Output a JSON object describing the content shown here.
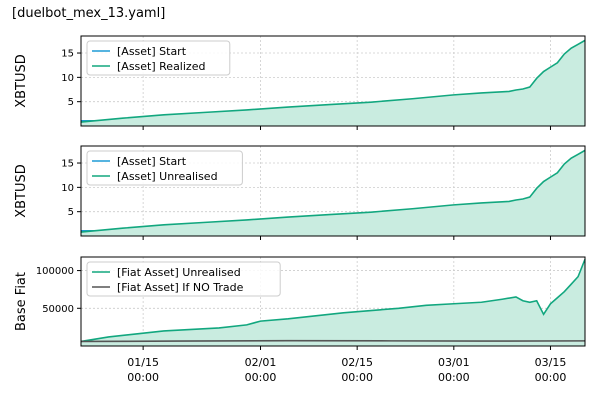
{
  "figure": {
    "title": "[duelbot_mex_13.yaml]"
  },
  "colors": {
    "asset_start": "#1f9bd6",
    "asset_main": "#12a77f",
    "asset_fill": "#c9ece0",
    "baseline": "#555555",
    "grid": "#cccccc"
  },
  "chart_data": [
    {
      "type": "area",
      "ylabel": "XBTUSD",
      "xlim": [
        "2019-01-06",
        "2019-03-20"
      ],
      "ylim": [
        0,
        18.5
      ],
      "yticks": [
        5,
        10,
        15
      ],
      "ytick_labels": [
        "5",
        "10",
        "15"
      ],
      "grid": true,
      "legend_position": "top-left",
      "series": [
        {
          "name": "[Asset] Start",
          "color": "#1f9bd6",
          "x": [
            "2019-01-06",
            "2019-03-20"
          ],
          "y": [
            1.0,
            1.0
          ]
        },
        {
          "name": "[Asset] Realized",
          "color": "#12a77f",
          "filled": true,
          "x": [
            "2019-01-06",
            "2019-01-12",
            "2019-01-18",
            "2019-01-24",
            "2019-01-30",
            "2019-02-05",
            "2019-02-11",
            "2019-02-17",
            "2019-02-23",
            "2019-03-01",
            "2019-03-05",
            "2019-03-09",
            "2019-03-10",
            "2019-03-11",
            "2019-03-12",
            "2019-03-13",
            "2019-03-14",
            "2019-03-15",
            "2019-03-16",
            "2019-03-17",
            "2019-03-18",
            "2019-03-19",
            "2019-03-20"
          ],
          "y": [
            0.8,
            1.6,
            2.3,
            2.8,
            3.3,
            3.9,
            4.4,
            4.9,
            5.6,
            6.4,
            6.8,
            7.1,
            7.4,
            7.6,
            8.0,
            9.8,
            11.2,
            12.1,
            13.0,
            14.8,
            16.0,
            16.8,
            17.6
          ]
        }
      ]
    },
    {
      "type": "area",
      "ylabel": "XBTUSD",
      "xlim": [
        "2019-01-06",
        "2019-03-20"
      ],
      "ylim": [
        0,
        18.5
      ],
      "yticks": [
        5,
        10,
        15
      ],
      "ytick_labels": [
        "5",
        "10",
        "15"
      ],
      "grid": true,
      "legend_position": "top-left",
      "series": [
        {
          "name": "[Asset] Start",
          "color": "#1f9bd6",
          "x": [
            "2019-01-06",
            "2019-03-20"
          ],
          "y": [
            1.0,
            1.0
          ]
        },
        {
          "name": "[Asset] Unrealised",
          "color": "#12a77f",
          "filled": true,
          "x": [
            "2019-01-06",
            "2019-01-12",
            "2019-01-18",
            "2019-01-24",
            "2019-01-30",
            "2019-02-05",
            "2019-02-11",
            "2019-02-17",
            "2019-02-23",
            "2019-03-01",
            "2019-03-05",
            "2019-03-09",
            "2019-03-10",
            "2019-03-11",
            "2019-03-12",
            "2019-03-13",
            "2019-03-14",
            "2019-03-15",
            "2019-03-16",
            "2019-03-17",
            "2019-03-18",
            "2019-03-19",
            "2019-03-20"
          ],
          "y": [
            0.8,
            1.6,
            2.3,
            2.8,
            3.3,
            3.9,
            4.4,
            4.9,
            5.6,
            6.4,
            6.8,
            7.1,
            7.4,
            7.6,
            8.0,
            9.8,
            11.2,
            12.1,
            13.0,
            14.8,
            16.0,
            16.8,
            17.6
          ]
        }
      ]
    },
    {
      "type": "area",
      "ylabel": "Base Fiat",
      "xlim": [
        "2019-01-06",
        "2019-03-20"
      ],
      "ylim": [
        0,
        118000
      ],
      "yticks": [
        50000,
        100000
      ],
      "ytick_labels": [
        "50000",
        "100000"
      ],
      "xticks": [
        "2019-01-15",
        "2019-02-01",
        "2019-02-15",
        "2019-03-01",
        "2019-03-15"
      ],
      "xtick_labels": [
        [
          "01/15",
          "00:00"
        ],
        [
          "02/01",
          "00:00"
        ],
        [
          "02/15",
          "00:00"
        ],
        [
          "03/01",
          "00:00"
        ],
        [
          "03/15",
          "00:00"
        ]
      ],
      "grid": true,
      "legend_position": "top-left",
      "series": [
        {
          "name": "[Fiat Asset] Unrealised",
          "color": "#12a77f",
          "filled": true,
          "x": [
            "2019-01-06",
            "2019-01-10",
            "2019-01-14",
            "2019-01-18",
            "2019-01-22",
            "2019-01-26",
            "2019-01-30",
            "2019-02-01",
            "2019-02-05",
            "2019-02-09",
            "2019-02-13",
            "2019-02-17",
            "2019-02-21",
            "2019-02-25",
            "2019-03-01",
            "2019-03-05",
            "2019-03-08",
            "2019-03-10",
            "2019-03-11",
            "2019-03-12",
            "2019-03-13",
            "2019-03-14",
            "2019-03-15",
            "2019-03-16",
            "2019-03-17",
            "2019-03-18",
            "2019-03-19",
            "2019-03-20"
          ],
          "y": [
            6000,
            12000,
            16000,
            20000,
            22000,
            24000,
            28000,
            33000,
            36000,
            40000,
            44000,
            47000,
            50000,
            54000,
            56000,
            58000,
            62000,
            65000,
            60000,
            58000,
            60000,
            42000,
            56000,
            64000,
            72000,
            82000,
            92000,
            115000
          ]
        },
        {
          "name": "[Fiat Asset] If NO Trade",
          "color": "#555555",
          "x": [
            "2019-01-06",
            "2019-01-20",
            "2019-02-05",
            "2019-02-20",
            "2019-03-05",
            "2019-03-20"
          ],
          "y": [
            6000,
            6500,
            7000,
            6800,
            6500,
            6800
          ]
        }
      ]
    }
  ]
}
